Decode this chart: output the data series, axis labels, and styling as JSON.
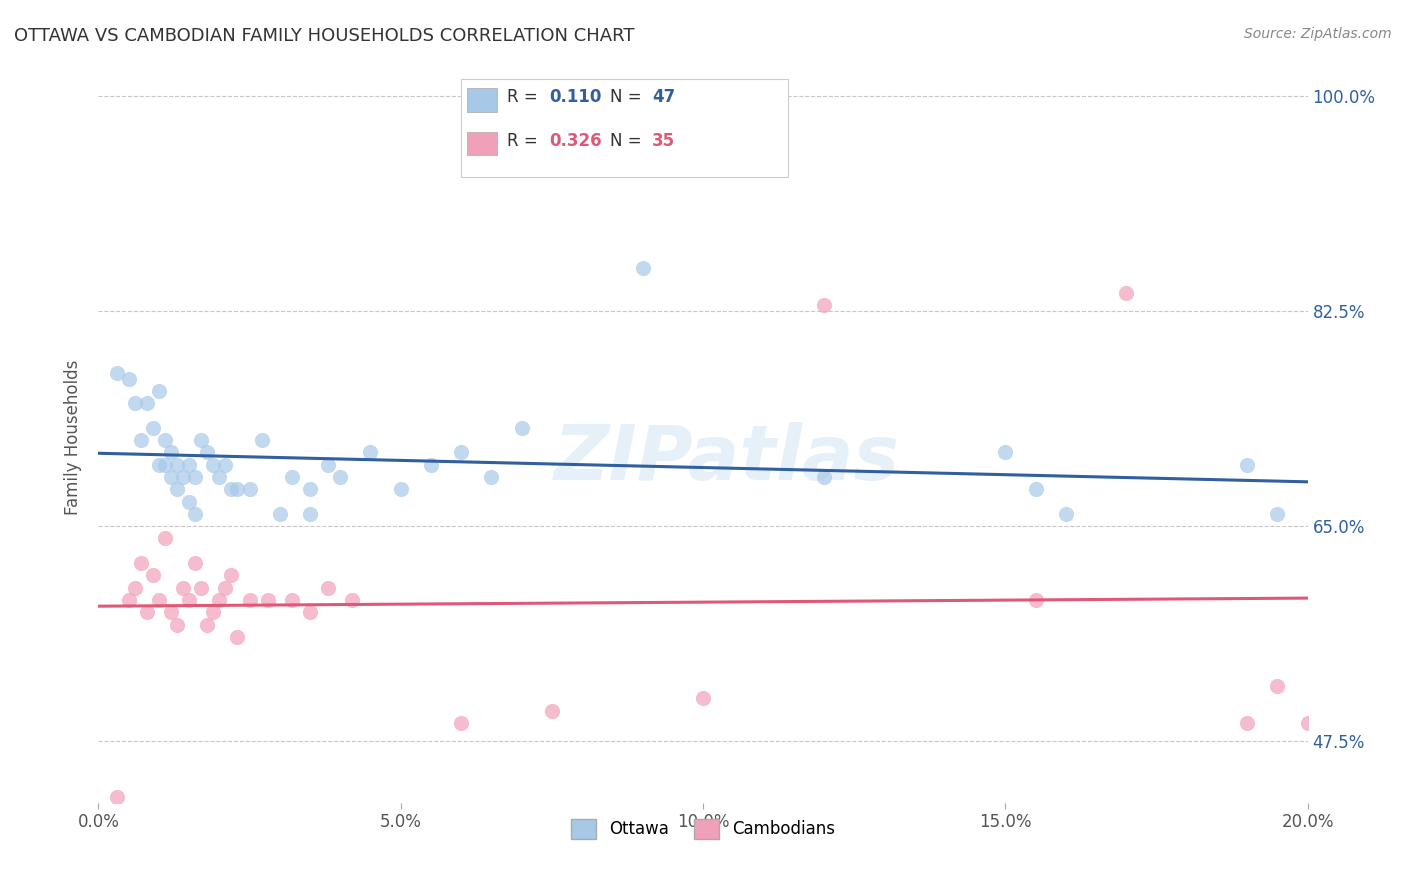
{
  "title": "OTTAWA VS CAMBODIAN FAMILY HOUSEHOLDS CORRELATION CHART",
  "source": "Source: ZipAtlas.com",
  "ylabel": "Family Households",
  "xmin": 0.0,
  "xmax": 0.2,
  "ymin": 0.425,
  "ymax": 1.02,
  "ytick_labels_show": [
    0.475,
    0.65,
    0.825,
    1.0
  ],
  "xticks": [
    0.0,
    0.05,
    0.1,
    0.15,
    0.2
  ],
  "xtick_labels": [
    "0.0%",
    "5.0%",
    "10.0%",
    "15.0%",
    "20.0%"
  ],
  "ottawa_color": "#a8c8e8",
  "cambodian_color": "#f0a0b8",
  "ottawa_line_color": "#3060a0",
  "cambodian_line_color": "#e05878",
  "R_ottawa": 0.11,
  "N_ottawa": 47,
  "R_cambodian": 0.326,
  "N_cambodian": 35,
  "watermark": "ZIPatlas",
  "title_color": "#333333",
  "axis_label_color": "#555555",
  "tick_color": "#555555",
  "right_tick_color": "#3060a0",
  "grid_color": "#c8c8c8",
  "ottawa_x": [
    0.003,
    0.005,
    0.006,
    0.007,
    0.008,
    0.009,
    0.01,
    0.01,
    0.011,
    0.011,
    0.012,
    0.012,
    0.013,
    0.013,
    0.014,
    0.015,
    0.015,
    0.016,
    0.016,
    0.017,
    0.018,
    0.019,
    0.02,
    0.021,
    0.022,
    0.023,
    0.025,
    0.027,
    0.03,
    0.032,
    0.035,
    0.035,
    0.038,
    0.04,
    0.045,
    0.05,
    0.055,
    0.06,
    0.065,
    0.07,
    0.09,
    0.12,
    0.15,
    0.155,
    0.16,
    0.19,
    0.195
  ],
  "ottawa_y": [
    0.775,
    0.77,
    0.75,
    0.72,
    0.75,
    0.73,
    0.76,
    0.7,
    0.72,
    0.7,
    0.69,
    0.71,
    0.68,
    0.7,
    0.69,
    0.67,
    0.7,
    0.69,
    0.66,
    0.72,
    0.71,
    0.7,
    0.69,
    0.7,
    0.68,
    0.68,
    0.68,
    0.72,
    0.66,
    0.69,
    0.68,
    0.66,
    0.7,
    0.69,
    0.71,
    0.68,
    0.7,
    0.71,
    0.69,
    0.73,
    0.86,
    0.69,
    0.71,
    0.68,
    0.66,
    0.7,
    0.66
  ],
  "cambodian_x": [
    0.003,
    0.005,
    0.006,
    0.007,
    0.008,
    0.009,
    0.01,
    0.011,
    0.012,
    0.013,
    0.014,
    0.015,
    0.016,
    0.017,
    0.018,
    0.019,
    0.02,
    0.021,
    0.022,
    0.023,
    0.025,
    0.028,
    0.032,
    0.035,
    0.038,
    0.042,
    0.06,
    0.075,
    0.1,
    0.12,
    0.155,
    0.17,
    0.19,
    0.195,
    0.2
  ],
  "cambodian_y": [
    0.43,
    0.59,
    0.6,
    0.62,
    0.58,
    0.61,
    0.59,
    0.64,
    0.58,
    0.57,
    0.6,
    0.59,
    0.62,
    0.6,
    0.57,
    0.58,
    0.59,
    0.6,
    0.61,
    0.56,
    0.59,
    0.59,
    0.59,
    0.58,
    0.6,
    0.59,
    0.49,
    0.5,
    0.51,
    0.83,
    0.59,
    0.84,
    0.49,
    0.52,
    0.49
  ]
}
